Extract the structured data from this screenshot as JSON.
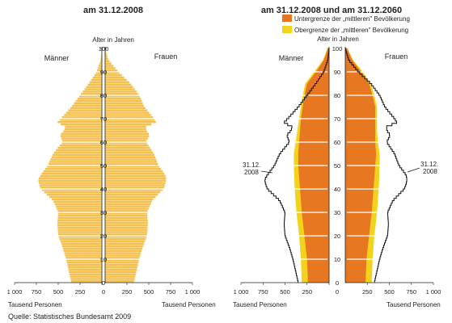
{
  "source": "Quelle: Statistisches Bundesamt 2009",
  "chart_data": [
    {
      "type": "bar",
      "title": "am 31.12.2008",
      "axis_title": "Alter in Jahren",
      "group_labels": [
        "Männer",
        "Frauen"
      ],
      "xlabel_left": "Tausend Personen",
      "xlabel_right": "Tausend Personen",
      "xlim": [
        0,
        1000
      ],
      "x_ticks": [
        "1 000",
        "750",
        "500",
        "250",
        "0",
        "250",
        "500",
        "750",
        "1 000"
      ],
      "y_ticks": [
        0,
        10,
        20,
        30,
        40,
        50,
        60,
        70,
        80,
        90,
        100
      ],
      "series": [
        {
          "name": "Männer",
          "ages": [
            0,
            5,
            10,
            15,
            20,
            25,
            30,
            35,
            40,
            42,
            44,
            46,
            50,
            55,
            60,
            63,
            65,
            67,
            68,
            70,
            75,
            80,
            85,
            90,
            95,
            100
          ],
          "values": [
            350,
            380,
            410,
            450,
            500,
            510,
            500,
            560,
            700,
            720,
            730,
            700,
            620,
            560,
            450,
            480,
            430,
            420,
            520,
            470,
            350,
            250,
            150,
            60,
            15,
            0
          ]
        },
        {
          "name": "Frauen",
          "ages": [
            0,
            5,
            10,
            15,
            20,
            25,
            30,
            35,
            40,
            42,
            44,
            46,
            50,
            55,
            60,
            63,
            65,
            67,
            68,
            70,
            75,
            80,
            85,
            90,
            95,
            100
          ],
          "values": [
            330,
            360,
            390,
            430,
            480,
            490,
            480,
            540,
            670,
            690,
            700,
            690,
            610,
            560,
            470,
            510,
            470,
            470,
            590,
            560,
            450,
            390,
            290,
            150,
            40,
            0
          ]
        }
      ]
    },
    {
      "type": "area",
      "title": "am 31.12.2008 und am 31.12.2060",
      "axis_title": "Alter in Jahren",
      "group_labels": [
        "Männer",
        "Frauen"
      ],
      "legend": {
        "placement": "top-right",
        "items": [
          {
            "label": "Untergrenze der „mittleren\" Bevölkerung",
            "color": "#E87722"
          },
          {
            "label": "Obergrenze der „mittleren\" Bevölkerung",
            "color": "#F2D21B"
          }
        ]
      },
      "annotation_left": [
        "31.12.",
        "2008"
      ],
      "annotation_right": [
        "31.12.",
        "2008"
      ],
      "xlabel_left": "Tausend Personen",
      "xlabel_right": "Tausend Personen",
      "xlim": [
        0,
        1000
      ],
      "x_ticks": [
        "1 000",
        "750",
        "500",
        "250",
        "0",
        "250",
        "500",
        "750",
        "1 000"
      ],
      "y_ticks": [
        0,
        10,
        20,
        30,
        40,
        50,
        60,
        70,
        80,
        90,
        100
      ],
      "lower_bound": {
        "ages": [
          0,
          10,
          20,
          30,
          40,
          50,
          55,
          60,
          65,
          70,
          75,
          80,
          85,
          90,
          95,
          100
        ],
        "left": [
          240,
          250,
          280,
          310,
          330,
          350,
          350,
          340,
          330,
          320,
          300,
          280,
          250,
          150,
          60,
          15
        ],
        "right": [
          230,
          240,
          270,
          300,
          320,
          340,
          350,
          340,
          340,
          340,
          340,
          310,
          270,
          180,
          80,
          20
        ]
      },
      "upper_bound": {
        "ages": [
          0,
          10,
          20,
          30,
          40,
          50,
          55,
          60,
          65,
          70,
          75,
          80,
          85,
          90,
          95,
          100
        ],
        "left": [
          310,
          320,
          340,
          370,
          390,
          400,
          400,
          380,
          360,
          340,
          320,
          300,
          270,
          170,
          70,
          20
        ],
        "right": [
          300,
          310,
          330,
          360,
          380,
          390,
          390,
          370,
          360,
          360,
          360,
          330,
          290,
          200,
          90,
          25
        ]
      },
      "outline_2008": {
        "ages": [
          0,
          5,
          10,
          15,
          20,
          25,
          30,
          35,
          40,
          42,
          44,
          46,
          50,
          55,
          60,
          63,
          65,
          67,
          68,
          70,
          75,
          80,
          85,
          90,
          95,
          100
        ],
        "left": [
          350,
          380,
          410,
          450,
          500,
          510,
          500,
          560,
          700,
          720,
          730,
          700,
          620,
          560,
          450,
          480,
          430,
          420,
          520,
          470,
          350,
          250,
          150,
          60,
          15,
          0
        ],
        "right": [
          330,
          360,
          390,
          430,
          480,
          490,
          480,
          540,
          670,
          690,
          700,
          690,
          610,
          560,
          470,
          510,
          470,
          470,
          590,
          560,
          450,
          390,
          290,
          150,
          40,
          0
        ]
      }
    }
  ]
}
